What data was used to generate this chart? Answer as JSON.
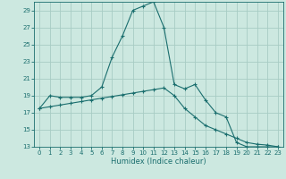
{
  "xlabel": "Humidex (Indice chaleur)",
  "background_color": "#cce8e0",
  "line_color": "#1a6e6e",
  "grid_color": "#a8ccc4",
  "xlim": [
    -0.5,
    23.5
  ],
  "ylim": [
    13,
    30
  ],
  "yticks": [
    13,
    15,
    17,
    19,
    21,
    23,
    25,
    27,
    29
  ],
  "xticks": [
    0,
    1,
    2,
    3,
    4,
    5,
    6,
    7,
    8,
    9,
    10,
    11,
    12,
    13,
    14,
    15,
    16,
    17,
    18,
    19,
    20,
    21,
    22,
    23
  ],
  "series1_x": [
    0,
    1,
    2,
    3,
    4,
    5,
    6,
    7,
    8,
    9,
    10,
    11,
    12,
    13,
    14,
    15,
    16,
    17,
    18,
    19,
    20,
    21,
    22,
    23
  ],
  "series1_y": [
    17.5,
    19.0,
    18.8,
    18.8,
    18.8,
    19.0,
    20.0,
    23.5,
    26.0,
    29.0,
    29.5,
    30.0,
    27.0,
    20.3,
    19.8,
    20.3,
    18.5,
    17.0,
    16.5,
    13.5,
    13.0,
    13.0,
    13.0,
    13.0
  ],
  "series2_x": [
    0,
    1,
    2,
    3,
    4,
    5,
    6,
    7,
    8,
    9,
    10,
    11,
    12,
    13,
    14,
    15,
    16,
    17,
    18,
    19,
    20,
    21,
    22,
    23
  ],
  "series2_y": [
    17.5,
    17.7,
    17.9,
    18.1,
    18.3,
    18.5,
    18.7,
    18.9,
    19.1,
    19.3,
    19.5,
    19.7,
    19.9,
    19.0,
    17.5,
    16.5,
    15.5,
    15.0,
    14.5,
    14.0,
    13.5,
    13.3,
    13.2,
    13.0
  ]
}
